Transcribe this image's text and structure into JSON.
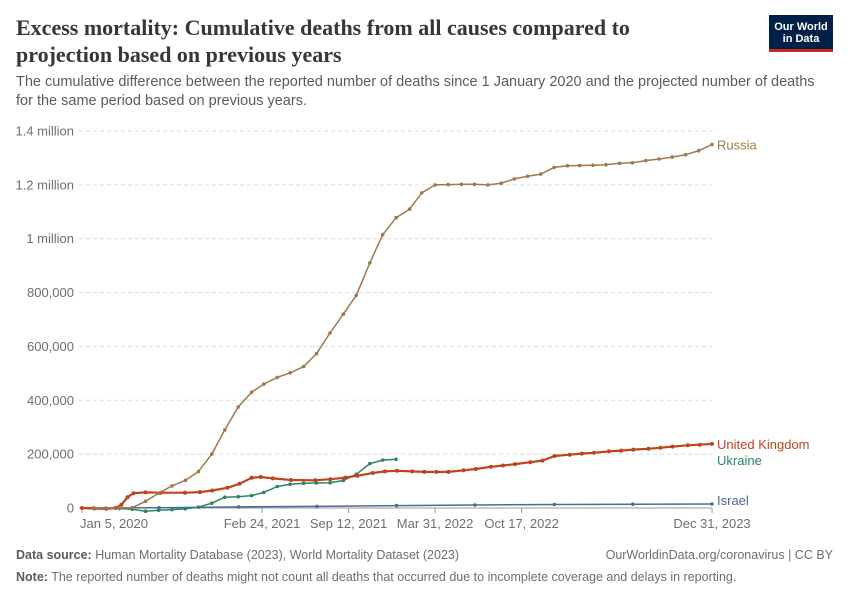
{
  "header": {
    "title": "Excess mortality: Cumulative deaths from all causes compared to projection based on previous years",
    "subtitle": "The cumulative difference between the reported number of deaths since 1 January 2020 and the projected number of deaths for the same period based on previous years.",
    "logo_line1": "Our World",
    "logo_line2": "in Data"
  },
  "footer": {
    "source_label": "Data source:",
    "source_text": " Human Mortality Database (2023), World Mortality Dataset (2023)",
    "note_label": "Note:",
    "note_text": " The reported number of deaths might not count all deaths that occurred due to incomplete coverage and delays in reporting.",
    "credit": "OurWorldinData.org/coronavirus | CC BY"
  },
  "chart_data": {
    "type": "line",
    "x_axis": {
      "min": "2019-12-29",
      "max": "2023-12-31",
      "ticks": [
        "2020-01-05",
        "2021-02-24",
        "2021-09-12",
        "2022-03-31",
        "2022-10-17",
        "2023-12-31"
      ],
      "tick_labels": [
        "Jan 5, 2020",
        "Feb 24, 2021",
        "Sep 12, 2021",
        "Mar 31, 2022",
        "Oct 17, 2022",
        "Dec 31, 2023"
      ]
    },
    "y_axis": {
      "min": 0,
      "max": 1400000,
      "ticks": [
        0,
        200000,
        400000,
        600000,
        800000,
        1000000,
        1200000,
        1400000
      ],
      "tick_labels": [
        "0",
        "200,000",
        "400,000",
        "600,000",
        "800,000",
        "1 million",
        "1.2 million",
        "1.4 million"
      ]
    },
    "grid": true,
    "series": [
      {
        "name": "Russia",
        "color": "#a2774b",
        "points": [
          [
            "2020-01-31",
            0
          ],
          [
            "2020-02-29",
            0
          ],
          [
            "2020-03-31",
            0
          ],
          [
            "2020-04-30",
            1000
          ],
          [
            "2020-05-31",
            25000
          ],
          [
            "2020-06-30",
            55000
          ],
          [
            "2020-07-31",
            82000
          ],
          [
            "2020-08-31",
            103000
          ],
          [
            "2020-09-30",
            135000
          ],
          [
            "2020-10-31",
            200000
          ],
          [
            "2020-11-30",
            290000
          ],
          [
            "2020-12-31",
            375000
          ],
          [
            "2021-01-31",
            430000
          ],
          [
            "2021-02-28",
            460000
          ],
          [
            "2021-03-31",
            485000
          ],
          [
            "2021-04-30",
            502000
          ],
          [
            "2021-05-31",
            525000
          ],
          [
            "2021-06-30",
            573000
          ],
          [
            "2021-07-31",
            650000
          ],
          [
            "2021-08-31",
            720000
          ],
          [
            "2021-09-30",
            790000
          ],
          [
            "2021-10-31",
            910000
          ],
          [
            "2021-11-30",
            1015000
          ],
          [
            "2021-12-31",
            1078000
          ],
          [
            "2022-01-31",
            1110000
          ],
          [
            "2022-02-28",
            1170000
          ],
          [
            "2022-03-31",
            1200000
          ],
          [
            "2022-04-30",
            1201000
          ],
          [
            "2022-05-31",
            1202000
          ],
          [
            "2022-06-30",
            1202000
          ],
          [
            "2022-07-31",
            1200000
          ],
          [
            "2022-08-31",
            1206000
          ],
          [
            "2022-09-30",
            1222000
          ],
          [
            "2022-10-31",
            1232000
          ],
          [
            "2022-11-30",
            1240000
          ],
          [
            "2022-12-31",
            1265000
          ],
          [
            "2023-01-31",
            1271000
          ],
          [
            "2023-02-28",
            1272000
          ],
          [
            "2023-03-31",
            1273000
          ],
          [
            "2023-04-30",
            1275000
          ],
          [
            "2023-05-31",
            1280000
          ],
          [
            "2023-06-30",
            1282000
          ],
          [
            "2023-07-31",
            1290000
          ],
          [
            "2023-08-31",
            1296000
          ],
          [
            "2023-09-30",
            1303000
          ],
          [
            "2023-10-31",
            1312000
          ],
          [
            "2023-11-30",
            1327000
          ],
          [
            "2023-12-31",
            1350000
          ]
        ]
      },
      {
        "name": "United Kingdom",
        "color": "#c0431f",
        "points": [
          [
            "2020-01-05",
            0
          ],
          [
            "2020-02-02",
            -2000
          ],
          [
            "2020-03-01",
            -3000
          ],
          [
            "2020-03-22",
            0
          ],
          [
            "2020-04-05",
            12000
          ],
          [
            "2020-04-19",
            40000
          ],
          [
            "2020-05-03",
            55000
          ],
          [
            "2020-05-31",
            58000
          ],
          [
            "2020-07-05",
            57000
          ],
          [
            "2020-08-30",
            57000
          ],
          [
            "2020-10-04",
            59000
          ],
          [
            "2020-11-01",
            65000
          ],
          [
            "2020-12-06",
            75000
          ],
          [
            "2021-01-03",
            90000
          ],
          [
            "2021-01-31",
            112000
          ],
          [
            "2021-02-21",
            115000
          ],
          [
            "2021-03-21",
            110000
          ],
          [
            "2021-05-02",
            104000
          ],
          [
            "2021-06-27",
            103000
          ],
          [
            "2021-08-01",
            107000
          ],
          [
            "2021-09-05",
            113000
          ],
          [
            "2021-10-03",
            120000
          ],
          [
            "2021-11-07",
            130000
          ],
          [
            "2021-12-05",
            136000
          ],
          [
            "2022-01-02",
            138000
          ],
          [
            "2022-02-06",
            136000
          ],
          [
            "2022-03-06",
            134000
          ],
          [
            "2022-04-03",
            134000
          ],
          [
            "2022-05-01",
            134000
          ],
          [
            "2022-06-05",
            140000
          ],
          [
            "2022-07-03",
            145000
          ],
          [
            "2022-08-07",
            153000
          ],
          [
            "2022-09-04",
            158000
          ],
          [
            "2022-10-02",
            163000
          ],
          [
            "2022-11-06",
            170000
          ],
          [
            "2022-12-04",
            176000
          ],
          [
            "2023-01-01",
            193000
          ],
          [
            "2023-02-05",
            198000
          ],
          [
            "2023-03-05",
            202000
          ],
          [
            "2023-04-02",
            205000
          ],
          [
            "2023-05-07",
            210000
          ],
          [
            "2023-06-04",
            213000
          ],
          [
            "2023-07-02",
            217000
          ],
          [
            "2023-08-06",
            220000
          ],
          [
            "2023-09-03",
            224000
          ],
          [
            "2023-10-01",
            228000
          ],
          [
            "2023-11-05",
            233000
          ],
          [
            "2023-12-03",
            235000
          ],
          [
            "2023-12-31",
            238000
          ]
        ]
      },
      {
        "name": "Ukraine",
        "color": "#2c8465",
        "points": [
          [
            "2020-01-31",
            0
          ],
          [
            "2020-02-29",
            -1000
          ],
          [
            "2020-03-31",
            -2000
          ],
          [
            "2020-04-30",
            -5000
          ],
          [
            "2020-05-31",
            -12000
          ],
          [
            "2020-06-30",
            -8000
          ],
          [
            "2020-07-31",
            -6000
          ],
          [
            "2020-08-31",
            -3000
          ],
          [
            "2020-09-30",
            3000
          ],
          [
            "2020-10-31",
            18000
          ],
          [
            "2020-11-30",
            40000
          ],
          [
            "2020-12-31",
            42000
          ],
          [
            "2021-01-31",
            46000
          ],
          [
            "2021-02-28",
            58000
          ],
          [
            "2021-03-31",
            80000
          ],
          [
            "2021-04-30",
            88000
          ],
          [
            "2021-05-31",
            92000
          ],
          [
            "2021-06-30",
            93000
          ],
          [
            "2021-07-31",
            94000
          ],
          [
            "2021-08-31",
            102000
          ],
          [
            "2021-09-30",
            125000
          ],
          [
            "2021-10-31",
            165000
          ],
          [
            "2021-11-30",
            178000
          ],
          [
            "2021-12-31",
            181000
          ]
        ]
      },
      {
        "name": "Israel",
        "color": "#4c6a9c",
        "points": [
          [
            "2020-01-05",
            0
          ],
          [
            "2020-07-01",
            1000
          ],
          [
            "2021-01-01",
            4000
          ],
          [
            "2021-07-01",
            6000
          ],
          [
            "2022-01-01",
            9000
          ],
          [
            "2022-07-01",
            11000
          ],
          [
            "2023-01-01",
            13000
          ],
          [
            "2023-07-01",
            14000
          ],
          [
            "2023-12-31",
            15000
          ]
        ]
      }
    ],
    "labels": [
      {
        "name": "Russia",
        "color": "#a2774b"
      },
      {
        "name": "United Kingdom",
        "color": "#c0431f"
      },
      {
        "name": "Ukraine",
        "color": "#2c8465"
      },
      {
        "name": "Israel",
        "color": "#4c6a9c"
      }
    ]
  }
}
